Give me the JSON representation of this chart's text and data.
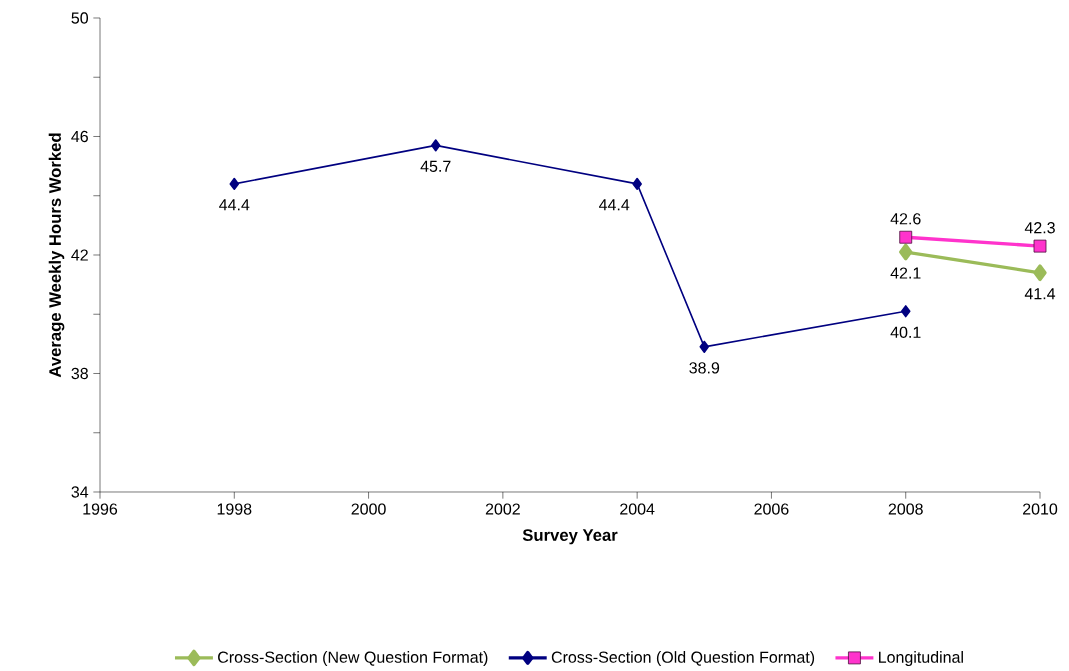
{
  "chart_data": {
    "type": "line",
    "xlabel": "Survey Year",
    "ylabel": "Average Weekly Hours Worked",
    "xlim": [
      1996,
      2010
    ],
    "xticks": [
      1996,
      1998,
      2000,
      2002,
      2004,
      2006,
      2008,
      2010
    ],
    "ylim": [
      34,
      50
    ],
    "yticks": [
      34,
      {
        "value": 36,
        "label": null
      },
      38,
      {
        "value": 40,
        "label": null
      },
      42,
      {
        "value": 44,
        "label": null
      },
      46,
      {
        "value": 48,
        "label": null
      },
      50
    ],
    "marker": "diamond",
    "legend": "bottom",
    "data_labels": true,
    "grid": false,
    "series": [
      {
        "name": "Cross-Section (New Question Format)",
        "color": "#9bbb59",
        "x": [
          2008,
          2010
        ],
        "values": [
          42.1,
          41.4
        ]
      },
      {
        "name": "Cross-Section (Old Question Format)",
        "color": "#000080",
        "x": [
          1998,
          2001,
          2004,
          2005,
          2008
        ],
        "values": [
          44.4,
          45.7,
          44.4,
          38.9,
          40.1
        ]
      },
      {
        "name": "Longitudinal",
        "color": "#ff33cc",
        "marker": "square",
        "x": [
          2008,
          2010
        ],
        "values": [
          42.6,
          42.3
        ]
      }
    ]
  }
}
